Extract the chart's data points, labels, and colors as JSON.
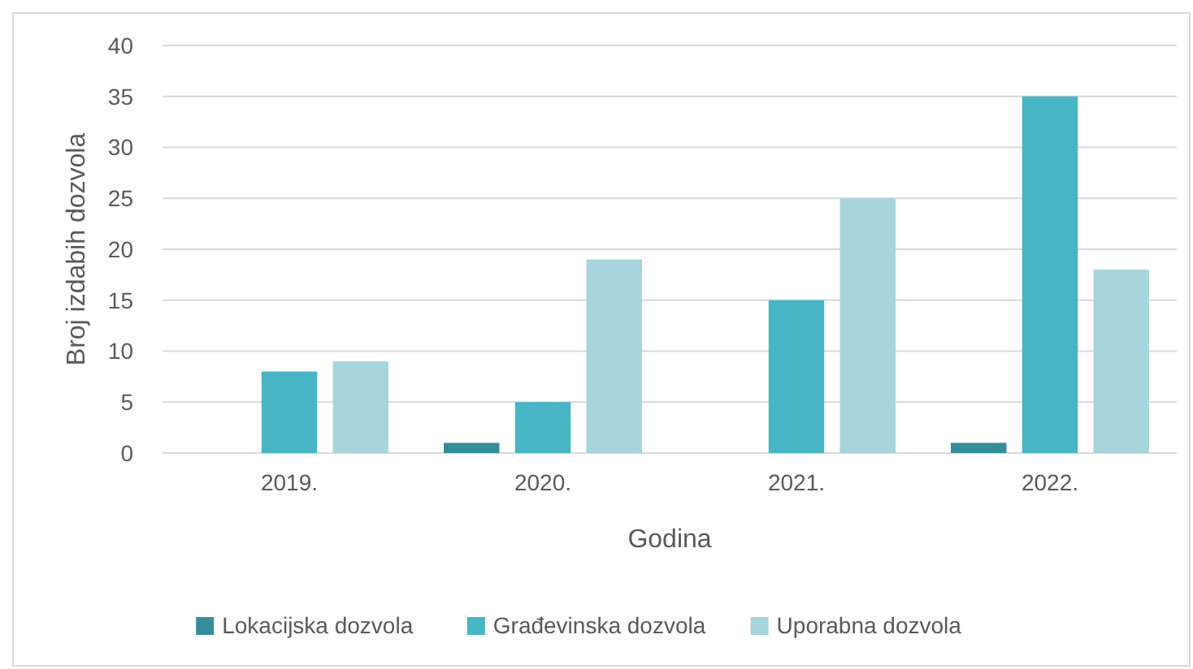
{
  "chart_data": {
    "type": "bar",
    "categories": [
      "2019.",
      "2020.",
      "2021.",
      "2022."
    ],
    "series": [
      {
        "name": "Lokacijska dozvola",
        "color": "#348d99",
        "values": [
          0,
          1,
          0,
          1
        ]
      },
      {
        "name": "Građevinska dozvola",
        "color": "#47b5c4",
        "values": [
          8,
          5,
          15,
          35
        ]
      },
      {
        "name": "Uporabna dozvola",
        "color": "#a8d4dc",
        "values": [
          9,
          19,
          25,
          18
        ]
      }
    ],
    "xlabel": "Godina",
    "ylabel": "Broj izdabih dozvola",
    "ylim": [
      0,
      40
    ],
    "yticks": [
      0,
      5,
      10,
      15,
      20,
      25,
      30,
      35,
      40
    ],
    "grid": "y",
    "legend": "bottom"
  }
}
